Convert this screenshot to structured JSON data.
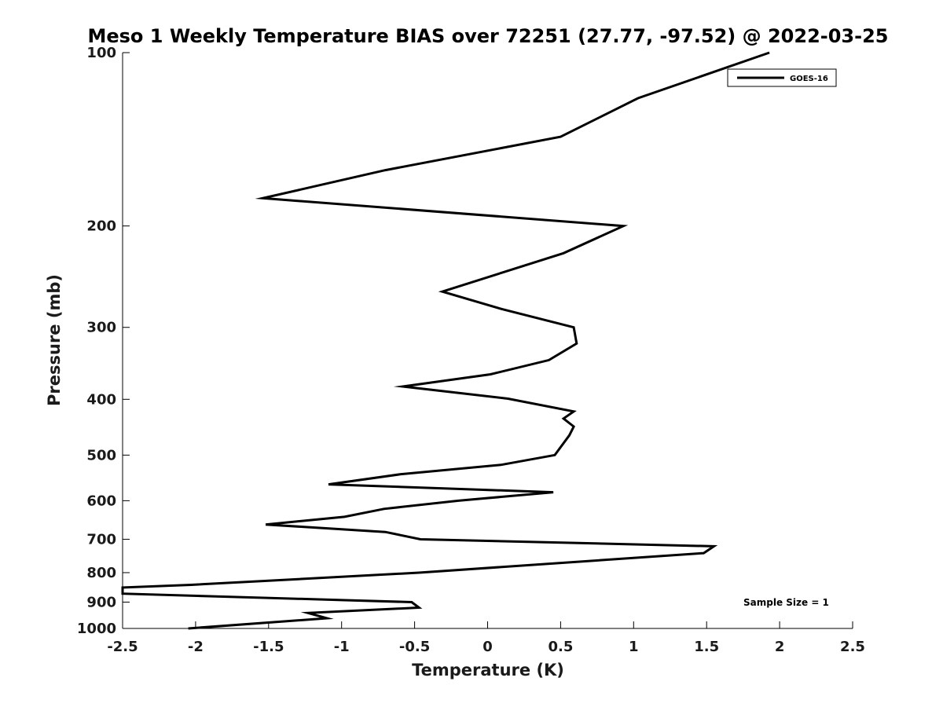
{
  "chart_data": {
    "type": "line",
    "title": "Meso 1 Weekly Temperature BIAS over 72251 (27.77, -97.52) @ 2022-03-25",
    "xlabel": "Temperature (K)",
    "ylabel": "Pressure (mb)",
    "xlim": [
      -2.5,
      2.5
    ],
    "ylim": [
      100,
      1000
    ],
    "yscale": "log",
    "y_reversed": true,
    "x_ticks": [
      "-2.5",
      "-2",
      "-1.5",
      "-1",
      "-0.5",
      "0",
      "0.5",
      "1",
      "1.5",
      "2",
      "2.5"
    ],
    "y_ticks": [
      "100",
      "200",
      "300",
      "400",
      "500",
      "600",
      "700",
      "800",
      "900",
      "1000"
    ],
    "grid": false,
    "legend": {
      "position": "top-right"
    },
    "annotation": "Sample Size = 1",
    "series": [
      {
        "name": "GOES-16",
        "color": "#000000",
        "x": [
          1.93,
          1.03,
          0.5,
          -0.7,
          -1.54,
          0.93,
          0.52,
          -0.31,
          0.1,
          0.59,
          0.61,
          0.42,
          0.02,
          -0.58,
          0.14,
          0.59,
          0.52,
          0.59,
          0.56,
          0.46,
          0.09,
          -0.6,
          -1.09,
          0.45,
          -0.2,
          -0.71,
          -0.98,
          -1.52,
          -0.7,
          -0.46,
          1.55,
          1.48,
          -0.47,
          -2.03,
          -2.5,
          -2.5,
          -0.52,
          -0.47,
          -1.23,
          -1.1,
          -2.05
        ],
        "y": [
          100,
          120,
          140,
          160,
          179,
          200,
          223,
          260,
          279,
          300,
          320,
          342,
          362,
          380,
          399,
          420,
          432,
          446,
          462,
          500,
          520,
          540,
          562,
          580,
          600,
          620,
          640,
          660,
          680,
          700,
          720,
          740,
          800,
          840,
          849,
          870,
          900,
          920,
          940,
          960,
          1000
        ]
      }
    ]
  }
}
